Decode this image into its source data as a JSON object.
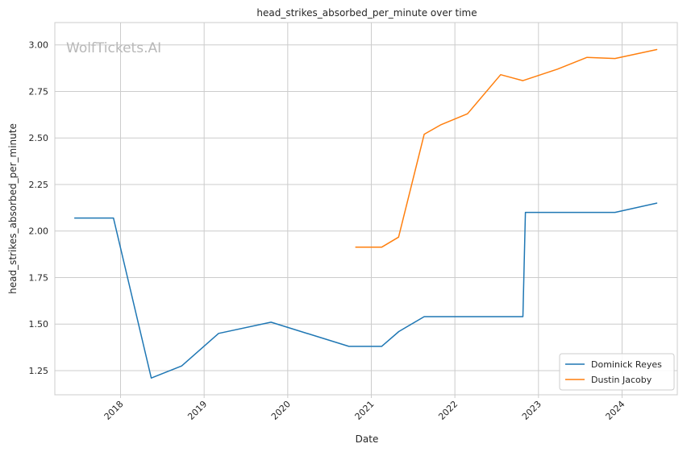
{
  "watermark": "WolfTickets.AI",
  "chart_data": {
    "type": "line",
    "title": "head_strikes_absorbed_per_minute over time",
    "xlabel": "Date",
    "ylabel": "head_strikes_absorbed_per_minute",
    "x_ticks": [
      "2018",
      "2019",
      "2020",
      "2021",
      "2022",
      "2023",
      "2024"
    ],
    "y_ticks": [
      "1.25",
      "1.50",
      "1.75",
      "2.00",
      "2.25",
      "2.50",
      "2.75",
      "3.00"
    ],
    "xlim": [
      "2017-03-20",
      "2024-08-30"
    ],
    "ylim": [
      1.12,
      3.12
    ],
    "grid": true,
    "legend_position": "lower-right",
    "series": [
      {
        "name": "Dominick Reyes",
        "color": "#1f77b4",
        "points": [
          {
            "x": "2017-06-15",
            "y": 2.07
          },
          {
            "x": "2017-12-01",
            "y": 2.07
          },
          {
            "x": "2018-05-15",
            "y": 1.21
          },
          {
            "x": "2018-09-25",
            "y": 1.275
          },
          {
            "x": "2019-03-05",
            "y": 1.45
          },
          {
            "x": "2019-10-20",
            "y": 1.51
          },
          {
            "x": "2020-09-25",
            "y": 1.38
          },
          {
            "x": "2021-02-15",
            "y": 1.38
          },
          {
            "x": "2021-05-01",
            "y": 1.46
          },
          {
            "x": "2021-08-20",
            "y": 1.54
          },
          {
            "x": "2022-10-25",
            "y": 1.54
          },
          {
            "x": "2022-11-05",
            "y": 2.1
          },
          {
            "x": "2023-12-01",
            "y": 2.1
          },
          {
            "x": "2024-06-01",
            "y": 2.15
          }
        ]
      },
      {
        "name": "Dustin Jacoby",
        "color": "#ff7f0e",
        "points": [
          {
            "x": "2020-10-25",
            "y": 1.913
          },
          {
            "x": "2021-02-15",
            "y": 1.913
          },
          {
            "x": "2021-04-30",
            "y": 1.967
          },
          {
            "x": "2021-08-20",
            "y": 2.52
          },
          {
            "x": "2021-10-30",
            "y": 2.57
          },
          {
            "x": "2022-02-25",
            "y": 2.63
          },
          {
            "x": "2022-07-20",
            "y": 2.84
          },
          {
            "x": "2022-10-25",
            "y": 2.808
          },
          {
            "x": "2023-03-25",
            "y": 2.87
          },
          {
            "x": "2023-08-01",
            "y": 2.933
          },
          {
            "x": "2023-12-01",
            "y": 2.927
          },
          {
            "x": "2024-06-01",
            "y": 2.975
          }
        ]
      }
    ]
  }
}
